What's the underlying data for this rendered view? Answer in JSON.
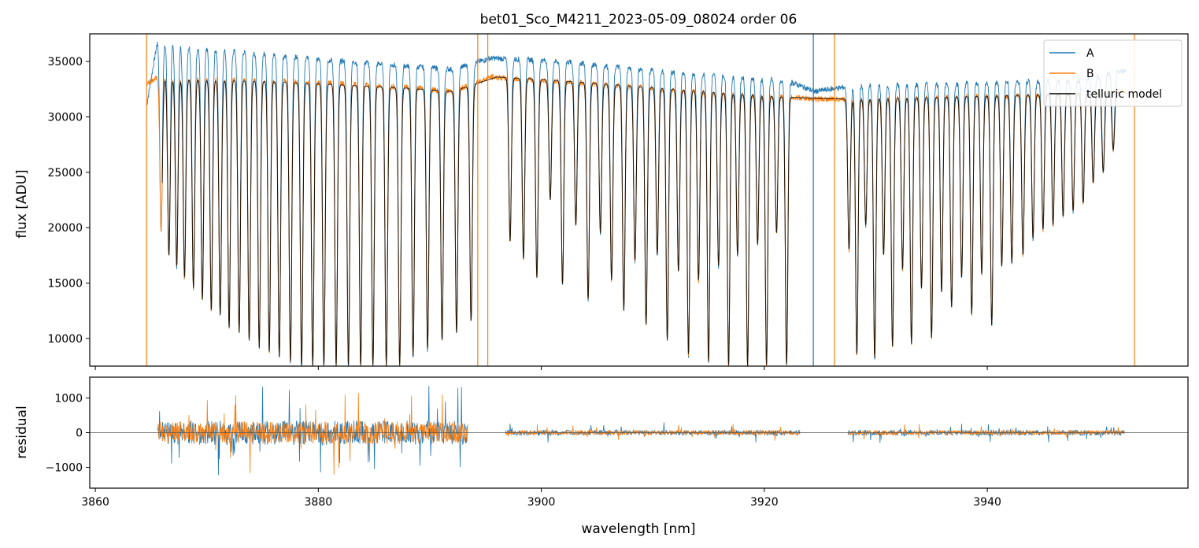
{
  "chart_data": [
    {
      "type": "line",
      "title": "bet01_Sco_M4211_2023-05-09_08024  order 06",
      "xlabel": "",
      "ylabel": "flux [ADU]",
      "xlim": [
        3859.5,
        3958.0
      ],
      "ylim": [
        7500,
        37500
      ],
      "yticks": [
        10000,
        15000,
        20000,
        25000,
        30000,
        35000
      ],
      "xticks": [
        3860,
        3880,
        3900,
        3920,
        3940
      ],
      "show_xtick_labels": false,
      "grid": false,
      "legend": {
        "placement": "top-right",
        "entries": [
          "A",
          "B",
          "telluric model"
        ]
      },
      "series": [
        {
          "name": "A",
          "color": "#1f77b4",
          "x": [
            3864.6,
            3865.6,
            3868,
            3872,
            3876,
            3880,
            3884,
            3888,
            3892,
            3895.5,
            3898,
            3902,
            3906,
            3910,
            3914,
            3918,
            3922,
            3924.5,
            3928,
            3932,
            3936,
            3940,
            3944,
            3948,
            3952.5
          ],
          "y": [
            31000,
            37000,
            36400,
            36000,
            35600,
            35200,
            34900,
            34600,
            34300,
            35300,
            35200,
            35000,
            34600,
            34200,
            33900,
            33600,
            33300,
            32300,
            32800,
            32900,
            33000,
            33100,
            33200,
            33300,
            34200
          ]
        },
        {
          "name": "B",
          "color": "#ff7f0e",
          "x": [
            3864.6,
            3865.6,
            3868,
            3872,
            3876,
            3880,
            3884,
            3888,
            3892,
            3895.5,
            3898,
            3902,
            3906,
            3910,
            3914,
            3918,
            3922,
            3924.5,
            3928,
            3932,
            3936,
            3940,
            3944,
            3948,
            3952.5
          ],
          "y": [
            33000,
            33600,
            33500,
            33400,
            33300,
            33100,
            32900,
            32700,
            32300,
            33600,
            33400,
            33200,
            32900,
            32600,
            32300,
            32000,
            31800,
            31600,
            31600,
            31700,
            31800,
            31900,
            32000,
            32100,
            32300
          ]
        },
        {
          "name": "telluric model",
          "color": "#000000",
          "x": [
            3866,
            3868,
            3872,
            3876,
            3880,
            3884,
            3888,
            3892,
            3896,
            3900,
            3904,
            3908,
            3912,
            3916,
            3920,
            3924,
            3928,
            3932,
            3936,
            3940,
            3944,
            3948,
            3952
          ],
          "y": [
            33500,
            33400,
            33300,
            33200,
            33000,
            32800,
            32600,
            32300,
            33600,
            33400,
            33100,
            32800,
            32500,
            32200,
            31900,
            31700,
            31600,
            31700,
            31800,
            31900,
            32000,
            32100,
            32200
          ]
        }
      ],
      "absorption_lines": {
        "wavelength": [
          3865.9,
          3866.6,
          3867.3,
          3868.0,
          3868.8,
          3869.6,
          3870.4,
          3871.2,
          3872.0,
          3872.9,
          3873.8,
          3874.7,
          3875.6,
          3876.5,
          3877.5,
          3878.5,
          3879.5,
          3880.5,
          3881.6,
          3882.7,
          3883.8,
          3884.9,
          3886.1,
          3887.3,
          3888.5,
          3889.8,
          3891.1,
          3892.4,
          3893.7,
          3897.2,
          3898.4,
          3899.6,
          3900.8,
          3901.9,
          3903.1,
          3904.2,
          3905.3,
          3906.3,
          3907.4,
          3908.4,
          3909.4,
          3910.4,
          3911.3,
          3912.3,
          3913.2,
          3914.1,
          3915.0,
          3915.9,
          3916.8,
          3917.6,
          3918.5,
          3919.4,
          3920.2,
          3921.1,
          3922.0,
          3927.6,
          3928.3,
          3929.1,
          3929.9,
          3930.7,
          3931.5,
          3932.4,
          3933.2,
          3934.1,
          3935.0,
          3935.9,
          3936.8,
          3937.7,
          3938.6,
          3939.5,
          3940.4,
          3941.3,
          3942.2,
          3943.2,
          3944.1,
          3945.0,
          3945.9,
          3946.8,
          3947.7,
          3948.6,
          3949.5,
          3950.4,
          3951.3
        ],
        "depth_flux": [
          19500,
          17500,
          16500,
          15500,
          14500,
          13500,
          12500,
          12000,
          11000,
          10500,
          9800,
          9200,
          8800,
          8300,
          7800,
          7500,
          7500,
          7500,
          7500,
          7500,
          7500,
          7500,
          7500,
          7500,
          8400,
          9000,
          9800,
          10500,
          11500,
          18800,
          17200,
          15500,
          22500,
          14800,
          20200,
          13500,
          19500,
          15200,
          12500,
          17000,
          11200,
          17500,
          9800,
          16000,
          8500,
          15200,
          7800,
          16500,
          7500,
          17500,
          7500,
          18500,
          7500,
          19500,
          7500,
          18000,
          8500,
          20200,
          8200,
          17500,
          9200,
          16200,
          9500,
          14500,
          10000,
          14200,
          12800,
          15500,
          12200,
          15800,
          11200,
          16500,
          16800,
          17500,
          19000,
          19800,
          20200,
          21000,
          21500,
          22200,
          24000,
          25000,
          27000
        ]
      }
    },
    {
      "type": "line",
      "title": "",
      "xlabel": "wavelength [nm]",
      "ylabel": "residual",
      "xlim": [
        3859.5,
        3958.0
      ],
      "ylim": [
        -1600,
        1600
      ],
      "yticks": [
        -1000,
        0,
        1000
      ],
      "xticks": [
        3860,
        3880,
        3900,
        3920,
        3940
      ],
      "grid": false,
      "zero_line": 0,
      "series": [
        {
          "name": "A",
          "color": "#1f77b4",
          "segments": [
            {
              "x_range": [
                3865.6,
                3893.4
              ],
              "noise_amplitude": 700
            },
            {
              "x_range": [
                3896.8,
                3923.2
              ],
              "noise_amplitude": 150
            },
            {
              "x_range": [
                3927.5,
                3952.3
              ],
              "noise_amplitude": 150
            }
          ]
        },
        {
          "name": "B",
          "color": "#ff7f0e",
          "segments": [
            {
              "x_range": [
                3865.6,
                3893.4
              ],
              "noise_amplitude": 650
            },
            {
              "x_range": [
                3896.8,
                3923.2
              ],
              "noise_amplitude": 130
            },
            {
              "x_range": [
                3927.5,
                3952.3
              ],
              "noise_amplitude": 130
            }
          ]
        }
      ]
    }
  ]
}
